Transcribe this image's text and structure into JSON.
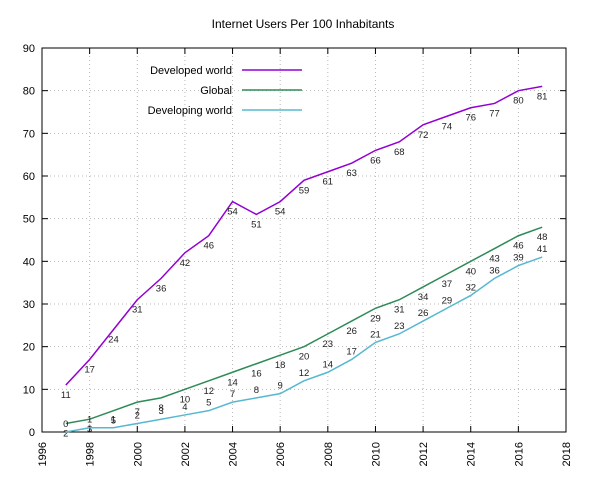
{
  "title": "Internet Users Per 100 Inhabitants",
  "chart_data": {
    "type": "line",
    "x": [
      1997,
      1998,
      1999,
      2000,
      2001,
      2002,
      2003,
      2004,
      2005,
      2006,
      2007,
      2008,
      2009,
      2010,
      2011,
      2012,
      2013,
      2014,
      2015,
      2016,
      2017
    ],
    "series": [
      {
        "name": "Developed world",
        "color": "#9400d3",
        "values": [
          11,
          17,
          24,
          31,
          36,
          42,
          46,
          54,
          51,
          54,
          59,
          61,
          63,
          66,
          68,
          72,
          74,
          76,
          77,
          80,
          81
        ],
        "label_offset": [
          0,
          13
        ]
      },
      {
        "name": "Global",
        "color": "#2e8b57",
        "values": [
          2,
          3,
          5,
          7,
          8,
          10,
          12,
          14,
          16,
          18,
          20,
          23,
          26,
          29,
          31,
          34,
          37,
          40,
          43,
          46,
          48
        ],
        "label_offset": [
          0,
          13
        ]
      },
      {
        "name": "Developing world",
        "color": "#56b8d0",
        "values": [
          0,
          1,
          1,
          2,
          3,
          4,
          5,
          7,
          8,
          9,
          12,
          14,
          17,
          21,
          23,
          26,
          29,
          32,
          36,
          39,
          41
        ],
        "label_offset": [
          0,
          -5
        ]
      }
    ],
    "xlabel": "",
    "ylabel": "",
    "xlim": [
      1996,
      2018
    ],
    "ylim": [
      0,
      90
    ],
    "xticks": [
      1996,
      1998,
      2000,
      2002,
      2004,
      2006,
      2008,
      2010,
      2012,
      2014,
      2016,
      2018
    ],
    "yticks": [
      0,
      10,
      20,
      30,
      40,
      50,
      60,
      70,
      80,
      90
    ],
    "grid": true,
    "grid_color": "#b8b8b8",
    "axis_color": "#000000",
    "legend_position": "top-left"
  }
}
